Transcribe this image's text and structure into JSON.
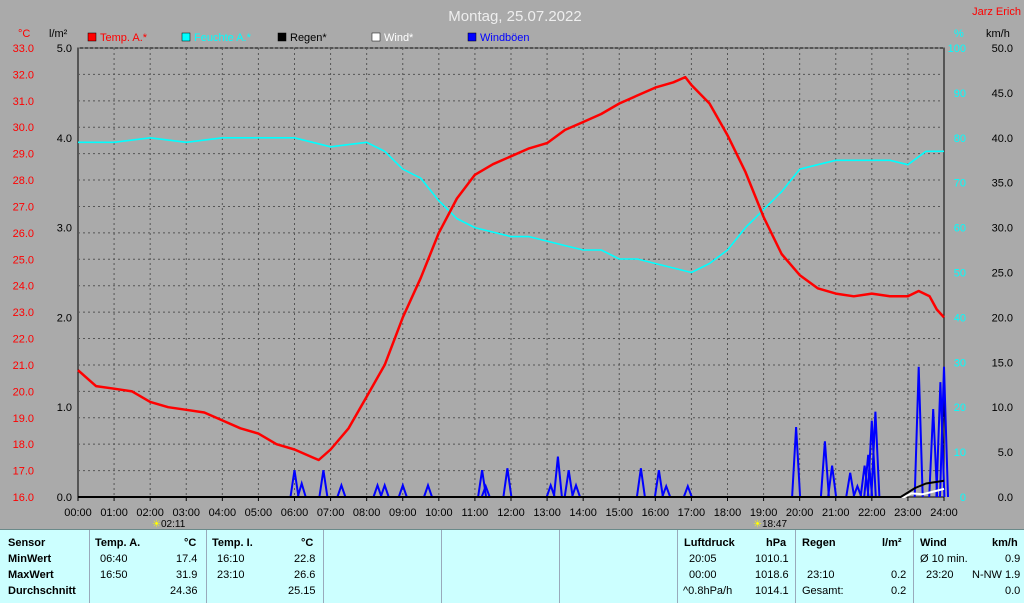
{
  "header": {
    "title": "Montag, 25.07.2022",
    "station": "Jarz Erich"
  },
  "axes": {
    "temp_unit": "°C",
    "rain_unit": "l/m²",
    "humidity_unit": "%",
    "wind_unit": "km/h",
    "temp_ticks": [
      "33.0",
      "32.0",
      "31.0",
      "30.0",
      "29.0",
      "28.0",
      "27.0",
      "26.0",
      "25.0",
      "24.0",
      "23.0",
      "22.0",
      "21.0",
      "20.0",
      "19.0",
      "18.0",
      "17.0",
      "16.0"
    ],
    "rain_ticks": [
      "5.0",
      "4.0",
      "3.0",
      "2.0",
      "1.0",
      "0.0"
    ],
    "humidity_ticks": [
      "100",
      "90",
      "80",
      "70",
      "60",
      "50",
      "40",
      "30",
      "20",
      "10",
      "0"
    ],
    "wind_ticks": [
      "50.0",
      "45.0",
      "40.0",
      "35.0",
      "30.0",
      "25.0",
      "20.0",
      "15.0",
      "10.0",
      "5.0",
      "0.0"
    ],
    "time_ticks": [
      "00:00",
      "01:00",
      "02:00",
      "03:00",
      "04:00",
      "05:00",
      "06:00",
      "07:00",
      "08:00",
      "09:00",
      "10:00",
      "11:00",
      "12:00",
      "13:00",
      "14:00",
      "15:00",
      "16:00",
      "17:00",
      "18:00",
      "19:00",
      "20:00",
      "21:00",
      "22:00",
      "23:00",
      "24:00"
    ],
    "sunrise": "02:11",
    "sunset": "18:47"
  },
  "legend": [
    {
      "label": "Temp. A.*",
      "color": "#ff0000"
    },
    {
      "label": "Feuchte A.*",
      "color": "#00ffff"
    },
    {
      "label": "Regen*",
      "color": "#000000"
    },
    {
      "label": "Wind*",
      "color": "#ffffff"
    },
    {
      "label": "Windböen",
      "color": "#0000ff"
    }
  ],
  "chart_data": {
    "type": "line",
    "x_range": [
      0,
      24
    ],
    "ylim_temp": [
      16,
      33
    ],
    "ylim_rain": [
      0,
      5
    ],
    "ylim_humidity": [
      0,
      100
    ],
    "ylim_wind": [
      0,
      50
    ],
    "series": [
      {
        "name": "Temp. A.*",
        "color": "#ff0000",
        "axis": "temp",
        "x": [
          0,
          0.5,
          1,
          1.5,
          2,
          2.5,
          3,
          3.5,
          4,
          4.5,
          5,
          5.5,
          6,
          6.5,
          6.67,
          7,
          7.5,
          8,
          8.5,
          9,
          9.5,
          10,
          10.5,
          11,
          11.5,
          12,
          12.5,
          13,
          13.5,
          14,
          14.5,
          15,
          15.5,
          16,
          16.5,
          16.83,
          17,
          17.5,
          18,
          18.5,
          19,
          19.5,
          20,
          20.5,
          21,
          21.5,
          22,
          22.5,
          23,
          23.3,
          23.6,
          23.8,
          24
        ],
        "y": [
          20.8,
          20.2,
          20.1,
          20.0,
          19.6,
          19.4,
          19.3,
          19.2,
          18.9,
          18.6,
          18.4,
          18.0,
          17.8,
          17.5,
          17.4,
          17.8,
          18.6,
          19.8,
          21.0,
          22.8,
          24.3,
          26.0,
          27.3,
          28.2,
          28.6,
          28.9,
          29.2,
          29.4,
          29.9,
          30.2,
          30.5,
          30.9,
          31.2,
          31.5,
          31.7,
          31.9,
          31.6,
          30.9,
          29.7,
          28.3,
          26.6,
          25.2,
          24.4,
          23.9,
          23.7,
          23.6,
          23.7,
          23.6,
          23.6,
          23.8,
          23.6,
          23.1,
          22.8
        ]
      },
      {
        "name": "Feuchte A.*",
        "color": "#00ffff",
        "axis": "humidity",
        "x": [
          0,
          1,
          2,
          3,
          4,
          5,
          6,
          7,
          8,
          8.5,
          9,
          9.5,
          10,
          10.5,
          11,
          11.5,
          12,
          12.5,
          13,
          13.5,
          14,
          14.5,
          15,
          15.5,
          16,
          16.5,
          17,
          17.5,
          18,
          18.5,
          19,
          19.5,
          20,
          20.5,
          21,
          21.5,
          22,
          22.5,
          23,
          23.5,
          24
        ],
        "y": [
          79,
          79,
          80,
          79,
          80,
          80,
          80,
          78,
          79,
          77,
          73,
          71,
          66,
          62,
          60,
          59,
          58,
          58,
          57,
          56,
          55,
          55,
          53,
          53,
          52,
          51,
          50,
          52,
          55,
          60,
          64,
          68,
          73,
          74,
          75,
          75,
          75,
          75,
          74,
          77,
          77
        ]
      },
      {
        "name": "Regen*",
        "color": "#000000",
        "axis": "rain",
        "x": [
          0,
          22.8,
          23.0,
          23.2,
          23.5,
          24
        ],
        "y": [
          0,
          0,
          0.05,
          0.1,
          0.15,
          0.18
        ]
      },
      {
        "name": "Wind*",
        "color": "#ffffff",
        "axis": "wind",
        "x": [
          0,
          22.9,
          23.1,
          23.4,
          23.7,
          24
        ],
        "y": [
          0,
          0,
          0.4,
          0.3,
          0.6,
          0.9
        ]
      }
    ],
    "gusts": {
      "name": "Windböen",
      "color": "#0000ff",
      "axis": "wind",
      "peaks": [
        {
          "t": 6.0,
          "v": 3.0
        },
        {
          "t": 6.2,
          "v": 1.5
        },
        {
          "t": 6.8,
          "v": 3.0
        },
        {
          "t": 7.3,
          "v": 1.3
        },
        {
          "t": 8.3,
          "v": 1.3
        },
        {
          "t": 8.5,
          "v": 1.3
        },
        {
          "t": 9.0,
          "v": 1.3
        },
        {
          "t": 9.7,
          "v": 1.3
        },
        {
          "t": 11.2,
          "v": 3.0
        },
        {
          "t": 11.3,
          "v": 1.2
        },
        {
          "t": 11.9,
          "v": 3.2
        },
        {
          "t": 13.1,
          "v": 1.3
        },
        {
          "t": 13.3,
          "v": 4.5
        },
        {
          "t": 13.6,
          "v": 3.0
        },
        {
          "t": 13.8,
          "v": 1.3
        },
        {
          "t": 15.6,
          "v": 3.2
        },
        {
          "t": 16.1,
          "v": 3.0
        },
        {
          "t": 16.3,
          "v": 1.2
        },
        {
          "t": 16.9,
          "v": 1.2
        },
        {
          "t": 19.9,
          "v": 7.8
        },
        {
          "t": 20.7,
          "v": 6.2
        },
        {
          "t": 20.9,
          "v": 3.5
        },
        {
          "t": 21.4,
          "v": 2.7
        },
        {
          "t": 21.6,
          "v": 1.2
        },
        {
          "t": 21.8,
          "v": 3.5
        },
        {
          "t": 21.9,
          "v": 4.7
        },
        {
          "t": 22.0,
          "v": 8.5
        },
        {
          "t": 22.1,
          "v": 9.5
        },
        {
          "t": 23.3,
          "v": 14.5
        },
        {
          "t": 23.7,
          "v": 9.8
        },
        {
          "t": 23.9,
          "v": 12.8
        },
        {
          "t": 24.0,
          "v": 14.5
        }
      ]
    }
  },
  "table": {
    "columns": [
      {
        "headers": [
          "Sensor",
          ""
        ],
        "rows": [
          "MinWert",
          "MaxWert",
          "Durchschnitt"
        ],
        "bold_rows": true
      },
      {
        "headers": [
          "Temp. A.",
          "°C"
        ],
        "rows": [
          [
            "06:40",
            "17.4"
          ],
          [
            "16:50",
            "31.9"
          ],
          [
            "",
            "24.36"
          ]
        ]
      },
      {
        "headers": [
          "Temp. I.",
          "°C"
        ],
        "rows": [
          [
            "16:10",
            "22.8"
          ],
          [
            "23:10",
            "26.6"
          ],
          [
            "",
            "25.15"
          ]
        ]
      },
      {
        "headers": [
          "Luftdruck",
          "hPa"
        ],
        "rows": [
          [
            "20:05",
            "1010.1"
          ],
          [
            "00:00",
            "1018.6"
          ],
          [
            "^0.8hPa/h",
            "1014.1"
          ]
        ]
      },
      {
        "headers": [
          "Regen",
          "l/m²"
        ],
        "rows": [
          [
            "",
            ""
          ],
          [
            "23:10",
            "0.2"
          ],
          [
            "Gesamt:",
            "0.2"
          ]
        ]
      },
      {
        "headers": [
          "Wind",
          "km/h"
        ],
        "rows": [
          [
            "Ø 10 min.",
            "0.9"
          ],
          [
            "23:20",
            "N-NW 1.9"
          ],
          [
            "",
            "0.0"
          ]
        ]
      }
    ]
  }
}
